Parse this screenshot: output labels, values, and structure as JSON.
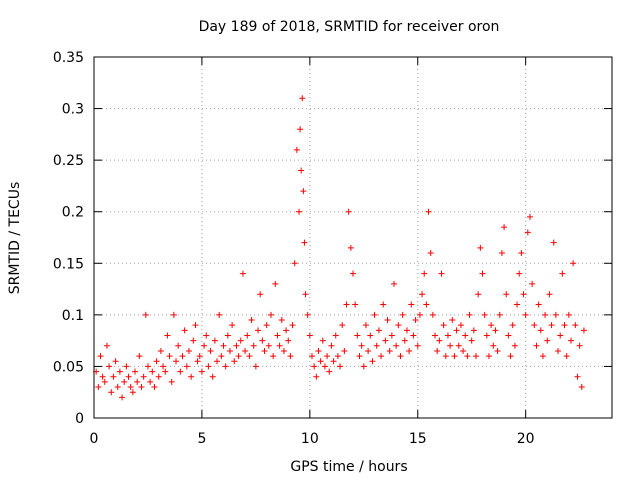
{
  "chart_data": {
    "type": "scatter",
    "title": "Day 189 of 2018, SRMTID for receiver oron",
    "xlabel": "GPS time / hours",
    "ylabel": "SRMTID / TECUs",
    "xlim": [
      0,
      24
    ],
    "ylim": [
      0,
      0.35
    ],
    "xticks": [
      0,
      5,
      10,
      15,
      20
    ],
    "xtick_labels": [
      "0",
      "5",
      "10",
      "15",
      "20"
    ],
    "yticks": [
      0,
      0.05,
      0.1,
      0.15,
      0.2,
      0.25,
      0.3,
      0.35
    ],
    "ytick_labels": [
      "0",
      "0.05",
      "0.1",
      "0.15",
      "0.2",
      "0.25",
      "0.3",
      "0.35"
    ],
    "grid": true,
    "marker": "plus",
    "series": [
      {
        "name": "SRMTID",
        "color": "#ff0000",
        "points": [
          [
            0.1,
            0.045
          ],
          [
            0.2,
            0.03
          ],
          [
            0.3,
            0.06
          ],
          [
            0.4,
            0.04
          ],
          [
            0.5,
            0.035
          ],
          [
            0.6,
            0.07
          ],
          [
            0.7,
            0.05
          ],
          [
            0.8,
            0.025
          ],
          [
            0.9,
            0.04
          ],
          [
            1.0,
            0.055
          ],
          [
            1.1,
            0.03
          ],
          [
            1.2,
            0.045
          ],
          [
            1.3,
            0.02
          ],
          [
            1.4,
            0.035
          ],
          [
            1.5,
            0.05
          ],
          [
            1.6,
            0.04
          ],
          [
            1.7,
            0.03
          ],
          [
            1.8,
            0.025
          ],
          [
            1.9,
            0.045
          ],
          [
            2.0,
            0.035
          ],
          [
            2.1,
            0.06
          ],
          [
            2.2,
            0.03
          ],
          [
            2.3,
            0.04
          ],
          [
            2.4,
            0.1
          ],
          [
            2.5,
            0.05
          ],
          [
            2.6,
            0.035
          ],
          [
            2.7,
            0.045
          ],
          [
            2.8,
            0.03
          ],
          [
            2.9,
            0.055
          ],
          [
            3.0,
            0.04
          ],
          [
            3.1,
            0.065
          ],
          [
            3.2,
            0.05
          ],
          [
            3.3,
            0.045
          ],
          [
            3.4,
            0.08
          ],
          [
            3.5,
            0.06
          ],
          [
            3.6,
            0.035
          ],
          [
            3.7,
            0.1
          ],
          [
            3.8,
            0.055
          ],
          [
            3.9,
            0.07
          ],
          [
            4.0,
            0.045
          ],
          [
            4.1,
            0.06
          ],
          [
            4.2,
            0.085
          ],
          [
            4.3,
            0.05
          ],
          [
            4.4,
            0.065
          ],
          [
            4.5,
            0.04
          ],
          [
            4.6,
            0.075
          ],
          [
            4.7,
            0.09
          ],
          [
            4.8,
            0.055
          ],
          [
            4.9,
            0.06
          ],
          [
            5.0,
            0.045
          ],
          [
            5.1,
            0.07
          ],
          [
            5.2,
            0.08
          ],
          [
            5.3,
            0.05
          ],
          [
            5.4,
            0.065
          ],
          [
            5.5,
            0.04
          ],
          [
            5.6,
            0.075
          ],
          [
            5.7,
            0.055
          ],
          [
            5.8,
            0.1
          ],
          [
            5.9,
            0.06
          ],
          [
            6.0,
            0.07
          ],
          [
            6.1,
            0.05
          ],
          [
            6.2,
            0.08
          ],
          [
            6.3,
            0.065
          ],
          [
            6.4,
            0.09
          ],
          [
            6.5,
            0.055
          ],
          [
            6.6,
            0.07
          ],
          [
            6.7,
            0.06
          ],
          [
            6.8,
            0.075
          ],
          [
            6.9,
            0.14
          ],
          [
            7.0,
            0.065
          ],
          [
            7.1,
            0.08
          ],
          [
            7.2,
            0.06
          ],
          [
            7.3,
            0.095
          ],
          [
            7.4,
            0.07
          ],
          [
            7.5,
            0.05
          ],
          [
            7.6,
            0.085
          ],
          [
            7.7,
            0.12
          ],
          [
            7.8,
            0.075
          ],
          [
            7.9,
            0.065
          ],
          [
            8.0,
            0.09
          ],
          [
            8.1,
            0.07
          ],
          [
            8.2,
            0.1
          ],
          [
            8.3,
            0.06
          ],
          [
            8.4,
            0.13
          ],
          [
            8.5,
            0.08
          ],
          [
            8.6,
            0.07
          ],
          [
            8.7,
            0.095
          ],
          [
            8.8,
            0.065
          ],
          [
            8.9,
            0.085
          ],
          [
            9.0,
            0.075
          ],
          [
            9.1,
            0.06
          ],
          [
            9.2,
            0.09
          ],
          [
            9.3,
            0.15
          ],
          [
            9.4,
            0.26
          ],
          [
            9.5,
            0.2
          ],
          [
            9.55,
            0.28
          ],
          [
            9.6,
            0.24
          ],
          [
            9.65,
            0.31
          ],
          [
            9.7,
            0.22
          ],
          [
            9.75,
            0.17
          ],
          [
            9.8,
            0.12
          ],
          [
            9.9,
            0.1
          ],
          [
            10.0,
            0.08
          ],
          [
            10.1,
            0.06
          ],
          [
            10.2,
            0.05
          ],
          [
            10.3,
            0.04
          ],
          [
            10.4,
            0.065
          ],
          [
            10.5,
            0.055
          ],
          [
            10.6,
            0.075
          ],
          [
            10.7,
            0.05
          ],
          [
            10.8,
            0.06
          ],
          [
            10.9,
            0.045
          ],
          [
            11.0,
            0.07
          ],
          [
            11.1,
            0.055
          ],
          [
            11.2,
            0.08
          ],
          [
            11.3,
            0.06
          ],
          [
            11.4,
            0.05
          ],
          [
            11.5,
            0.09
          ],
          [
            11.6,
            0.065
          ],
          [
            11.7,
            0.11
          ],
          [
            11.8,
            0.2
          ],
          [
            11.9,
            0.165
          ],
          [
            12.0,
            0.14
          ],
          [
            12.1,
            0.11
          ],
          [
            12.2,
            0.08
          ],
          [
            12.3,
            0.06
          ],
          [
            12.4,
            0.07
          ],
          [
            12.5,
            0.05
          ],
          [
            12.6,
            0.09
          ],
          [
            12.7,
            0.065
          ],
          [
            12.8,
            0.08
          ],
          [
            12.9,
            0.055
          ],
          [
            13.0,
            0.1
          ],
          [
            13.1,
            0.07
          ],
          [
            13.2,
            0.085
          ],
          [
            13.3,
            0.06
          ],
          [
            13.4,
            0.11
          ],
          [
            13.5,
            0.075
          ],
          [
            13.6,
            0.095
          ],
          [
            13.7,
            0.065
          ],
          [
            13.8,
            0.08
          ],
          [
            13.9,
            0.13
          ],
          [
            14.0,
            0.07
          ],
          [
            14.1,
            0.09
          ],
          [
            14.2,
            0.06
          ],
          [
            14.3,
            0.1
          ],
          [
            14.4,
            0.075
          ],
          [
            14.5,
            0.085
          ],
          [
            14.6,
            0.065
          ],
          [
            14.7,
            0.11
          ],
          [
            14.8,
            0.08
          ],
          [
            14.9,
            0.095
          ],
          [
            15.0,
            0.07
          ],
          [
            15.1,
            0.1
          ],
          [
            15.2,
            0.12
          ],
          [
            15.3,
            0.14
          ],
          [
            15.4,
            0.11
          ],
          [
            15.5,
            0.2
          ],
          [
            15.6,
            0.16
          ],
          [
            15.7,
            0.1
          ],
          [
            15.8,
            0.08
          ],
          [
            15.9,
            0.065
          ],
          [
            16.0,
            0.075
          ],
          [
            16.1,
            0.14
          ],
          [
            16.2,
            0.09
          ],
          [
            16.3,
            0.06
          ],
          [
            16.4,
            0.08
          ],
          [
            16.5,
            0.07
          ],
          [
            16.6,
            0.095
          ],
          [
            16.7,
            0.06
          ],
          [
            16.8,
            0.085
          ],
          [
            16.9,
            0.07
          ],
          [
            17.0,
            0.09
          ],
          [
            17.1,
            0.065
          ],
          [
            17.2,
            0.08
          ],
          [
            17.3,
            0.06
          ],
          [
            17.4,
            0.1
          ],
          [
            17.5,
            0.075
          ],
          [
            17.6,
            0.085
          ],
          [
            17.7,
            0.06
          ],
          [
            17.8,
            0.12
          ],
          [
            17.9,
            0.165
          ],
          [
            18.0,
            0.14
          ],
          [
            18.1,
            0.1
          ],
          [
            18.2,
            0.08
          ],
          [
            18.3,
            0.06
          ],
          [
            18.4,
            0.09
          ],
          [
            18.5,
            0.07
          ],
          [
            18.6,
            0.085
          ],
          [
            18.7,
            0.065
          ],
          [
            18.8,
            0.1
          ],
          [
            18.9,
            0.16
          ],
          [
            19.0,
            0.185
          ],
          [
            19.1,
            0.12
          ],
          [
            19.2,
            0.08
          ],
          [
            19.3,
            0.06
          ],
          [
            19.4,
            0.09
          ],
          [
            19.5,
            0.07
          ],
          [
            19.6,
            0.11
          ],
          [
            19.7,
            0.14
          ],
          [
            19.8,
            0.16
          ],
          [
            19.9,
            0.12
          ],
          [
            20.0,
            0.1
          ],
          [
            20.1,
            0.18
          ],
          [
            20.2,
            0.195
          ],
          [
            20.3,
            0.13
          ],
          [
            20.4,
            0.09
          ],
          [
            20.5,
            0.07
          ],
          [
            20.6,
            0.11
          ],
          [
            20.7,
            0.085
          ],
          [
            20.8,
            0.06
          ],
          [
            20.9,
            0.1
          ],
          [
            21.0,
            0.075
          ],
          [
            21.1,
            0.12
          ],
          [
            21.2,
            0.09
          ],
          [
            21.3,
            0.17
          ],
          [
            21.4,
            0.1
          ],
          [
            21.5,
            0.065
          ],
          [
            21.6,
            0.08
          ],
          [
            21.7,
            0.14
          ],
          [
            21.8,
            0.09
          ],
          [
            21.9,
            0.06
          ],
          [
            22.0,
            0.1
          ],
          [
            22.1,
            0.075
          ],
          [
            22.2,
            0.15
          ],
          [
            22.3,
            0.09
          ],
          [
            22.4,
            0.04
          ],
          [
            22.5,
            0.07
          ],
          [
            22.6,
            0.03
          ],
          [
            22.7,
            0.085
          ]
        ]
      }
    ]
  }
}
